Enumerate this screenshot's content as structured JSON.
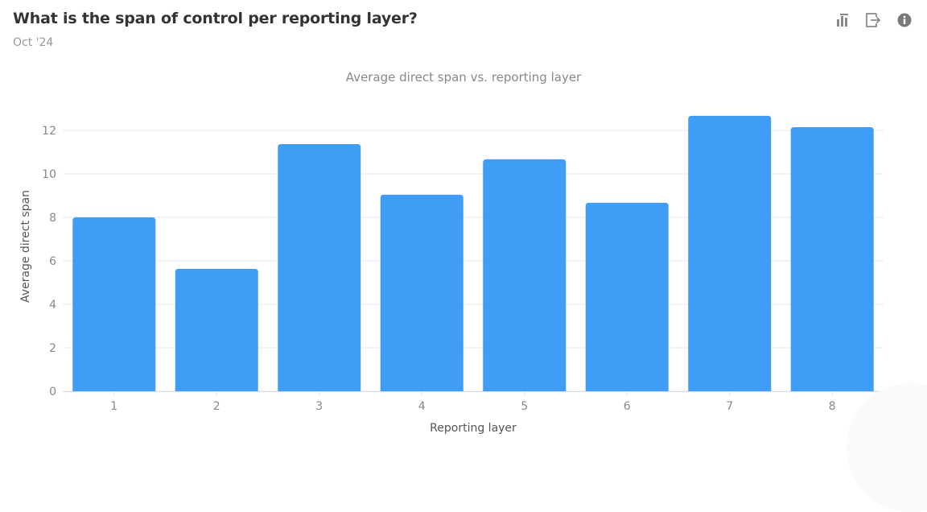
{
  "header": {
    "title": "What is the span of control per reporting layer?",
    "subtitle": "Oct '24",
    "toolbar": [
      {
        "icon": "bar-chart-icon",
        "label": "Chart type"
      },
      {
        "icon": "export-icon",
        "label": "Export"
      },
      {
        "icon": "info-icon",
        "label": "Info"
      }
    ]
  },
  "colors": {
    "bar": "#3f9df5",
    "grid": "#e6e6ef",
    "title": "#333333",
    "muted": "#999999"
  },
  "chart_data": {
    "type": "bar",
    "title": "Average direct span vs. reporting layer",
    "xlabel": "Reporting layer",
    "ylabel": "Average direct span",
    "categories": [
      "1",
      "2",
      "3",
      "4",
      "5",
      "6",
      "7",
      "8"
    ],
    "values": [
      8.0,
      5.63,
      11.37,
      9.04,
      10.67,
      8.67,
      12.67,
      12.15
    ],
    "ylim": [
      0,
      12.8
    ],
    "yticks": [
      0,
      2,
      4,
      6,
      8,
      10,
      12
    ],
    "grid": true,
    "legend": "none"
  }
}
